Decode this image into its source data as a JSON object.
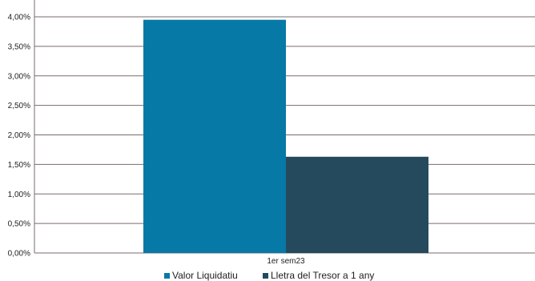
{
  "chart_data": {
    "type": "bar",
    "categories": [
      "1er sem23"
    ],
    "series": [
      {
        "name": "Valor Liquidatiu",
        "values": [
          3.95
        ],
        "color": "#0779A6"
      },
      {
        "name": "Lletra del Tresor a 1 any",
        "values": [
          1.63
        ],
        "color": "#254A5E"
      }
    ],
    "y_ticks": [
      "0,00%",
      "0,50%",
      "1,00%",
      "1,50%",
      "2,00%",
      "2,50%",
      "3,00%",
      "3,50%",
      "4,00%"
    ],
    "ylim": [
      0,
      4.0
    ],
    "unit": "%",
    "grid": true,
    "legend_position": "bottom",
    "gridline_color": "#7a6b6b"
  }
}
